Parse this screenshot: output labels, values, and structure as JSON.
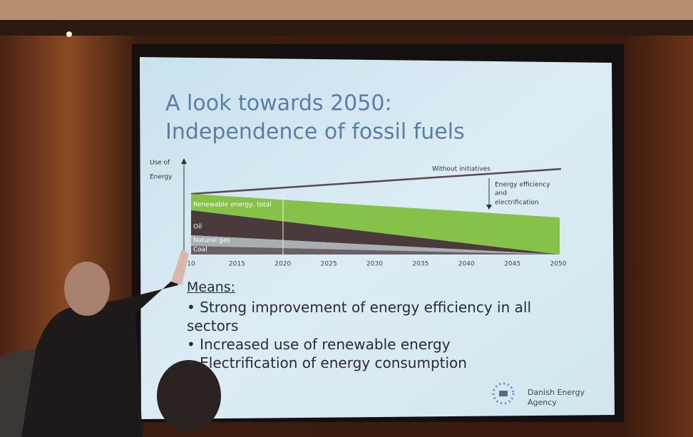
{
  "slide": {
    "title": [
      "A look towards 2050:",
      "Independence of fossil fuels"
    ],
    "chart": {
      "y_label": [
        "Use of",
        "Energy"
      ],
      "annotations": [
        "Without initiatives",
        "Energy efficiency",
        "and",
        "electrification"
      ],
      "series_labels": [
        "Renewable energy, total",
        "Oil",
        "Natural gas",
        "Coal"
      ],
      "x_labels": [
        "10",
        "2015",
        "2020",
        "2025",
        "2030",
        "2035",
        "2040",
        "2045",
        "2050"
      ]
    },
    "means": {
      "heading": "Means:",
      "bullets": [
        "Strong improvement of energy efficiency in all sectors",
        "Increased use of renewable energy",
        "Electrification of energy consumption"
      ]
    },
    "logo": [
      "Danish Energy",
      "Agency"
    ]
  }
}
